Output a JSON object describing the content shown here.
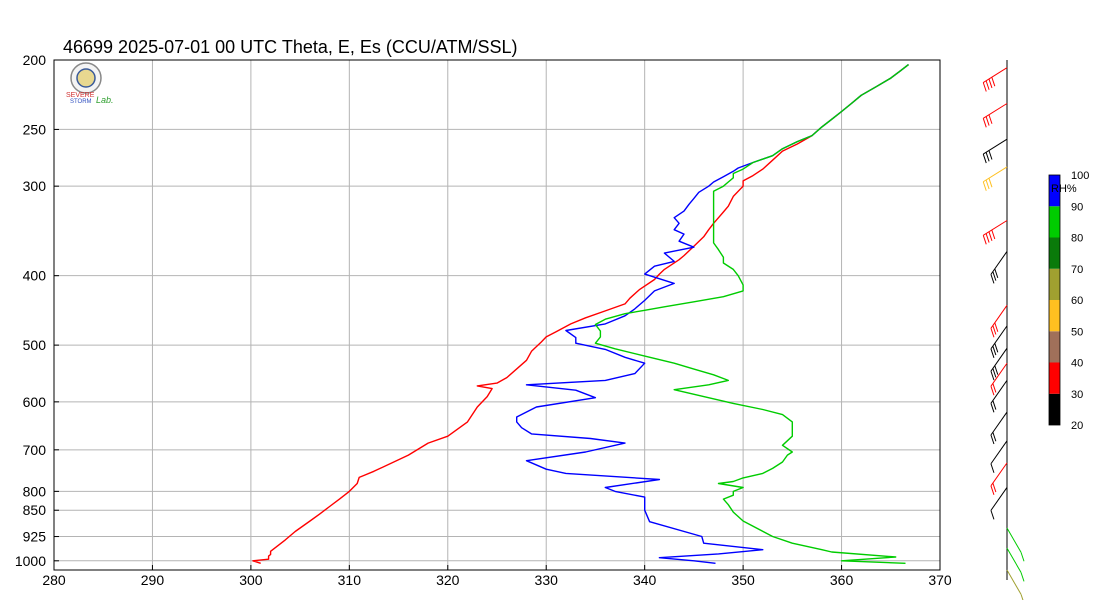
{
  "chart_data": {
    "type": "line",
    "title": "46699  2025-07-01 00 UTC  Theta, E, Es (CCU/ATM/SSL)",
    "xlabel": "",
    "ylabel": "",
    "xlim": [
      280,
      370
    ],
    "ylim_pressure_hPa": [
      1030,
      200
    ],
    "y_scale": "log-pressure",
    "grid": true,
    "x_ticks": [
      "280",
      "290",
      "300",
      "310",
      "320",
      "330",
      "340",
      "350",
      "360",
      "370"
    ],
    "y_ticks": [
      {
        "p": 200,
        "label": "200"
      },
      {
        "p": 250,
        "label": "250"
      },
      {
        "p": 300,
        "label": "300"
      },
      {
        "p": 400,
        "label": "400"
      },
      {
        "p": 500,
        "label": "500"
      },
      {
        "p": 600,
        "label": "600"
      },
      {
        "p": 700,
        "label": "700"
      },
      {
        "p": 800,
        "label": "800"
      },
      {
        "p": 850,
        "label": "850"
      },
      {
        "p": 925,
        "label": "925"
      },
      {
        "p": 1000,
        "label": "1000"
      }
    ],
    "series": [
      {
        "key": "theta",
        "color": "#ff0000",
        "points": [
          [
            301,
            1008
          ],
          [
            300.2,
            1000
          ],
          [
            301.8,
            995
          ],
          [
            301.8,
            985
          ],
          [
            302,
            980
          ],
          [
            302,
            970
          ],
          [
            303.5,
            935
          ],
          [
            304.5,
            910
          ],
          [
            306,
            880
          ],
          [
            307,
            860
          ],
          [
            308,
            840
          ],
          [
            309,
            820
          ],
          [
            310,
            800
          ],
          [
            310.8,
            780
          ],
          [
            311,
            765
          ],
          [
            311.5,
            760
          ],
          [
            312.5,
            750
          ],
          [
            316,
            712
          ],
          [
            318,
            685
          ],
          [
            320,
            670
          ],
          [
            322,
            640
          ],
          [
            323,
            610
          ],
          [
            324,
            590
          ],
          [
            324.5,
            575
          ],
          [
            323,
            570
          ],
          [
            325,
            565
          ],
          [
            326,
            555
          ],
          [
            328,
            525
          ],
          [
            328.5,
            510
          ],
          [
            329.5,
            495
          ],
          [
            330,
            487
          ],
          [
            331,
            479
          ],
          [
            332.5,
            467
          ],
          [
            334,
            458
          ],
          [
            336,
            448
          ],
          [
            338,
            438
          ],
          [
            338.5,
            430
          ],
          [
            339.5,
            418
          ],
          [
            341,
            405
          ],
          [
            341.5,
            398
          ],
          [
            342,
            392
          ],
          [
            343.5,
            380
          ],
          [
            344,
            375
          ],
          [
            345,
            364
          ],
          [
            346,
            353
          ],
          [
            346.5,
            345
          ],
          [
            347,
            338
          ],
          [
            347.5,
            332
          ],
          [
            348,
            326
          ],
          [
            348.5,
            320
          ],
          [
            349,
            310
          ],
          [
            350,
            300
          ],
          [
            350,
            295
          ],
          [
            351,
            290
          ],
          [
            352,
            284
          ],
          [
            353,
            276
          ],
          [
            354,
            268
          ],
          [
            355.5,
            262
          ],
          [
            357,
            255
          ],
          [
            358,
            248
          ],
          [
            359,
            242
          ],
          [
            360,
            236
          ],
          [
            361,
            230
          ],
          [
            362,
            224
          ],
          [
            363.5,
            218
          ],
          [
            365,
            212
          ],
          [
            366,
            207
          ],
          [
            366.8,
            203
          ]
        ]
      },
      {
        "key": "E",
        "color": "#0000ff",
        "points": [
          [
            347.2,
            1008
          ],
          [
            345,
            1000
          ],
          [
            341.5,
            990
          ],
          [
            347.5,
            978
          ],
          [
            352,
            965
          ],
          [
            346,
            945
          ],
          [
            345.8,
            925
          ],
          [
            340.5,
            882
          ],
          [
            340,
            850
          ],
          [
            340,
            815
          ],
          [
            337,
            800
          ],
          [
            336,
            790
          ],
          [
            341.5,
            770
          ],
          [
            332,
            755
          ],
          [
            330,
            745
          ],
          [
            328,
            725
          ],
          [
            334,
            705
          ],
          [
            338,
            685
          ],
          [
            334.5,
            675
          ],
          [
            328.5,
            665
          ],
          [
            327.5,
            652
          ],
          [
            327,
            640
          ],
          [
            327,
            630
          ],
          [
            329,
            610
          ],
          [
            335,
            592
          ],
          [
            333,
            578
          ],
          [
            328,
            568
          ],
          [
            336,
            560
          ],
          [
            339,
            548
          ],
          [
            340,
            530
          ],
          [
            338,
            520
          ],
          [
            336,
            507
          ],
          [
            333,
            497
          ],
          [
            333,
            488
          ],
          [
            332,
            477
          ],
          [
            336,
            467
          ],
          [
            338,
            455
          ],
          [
            339,
            445
          ],
          [
            340,
            433
          ],
          [
            341,
            420
          ],
          [
            343,
            410
          ],
          [
            340,
            398
          ],
          [
            341,
            388
          ],
          [
            343,
            382
          ],
          [
            342,
            372
          ],
          [
            345,
            365
          ],
          [
            343.5,
            358
          ],
          [
            344,
            350
          ],
          [
            343,
            345
          ],
          [
            343.5,
            338
          ],
          [
            343,
            332
          ],
          [
            344,
            325
          ],
          [
            344.5,
            318
          ],
          [
            345,
            312
          ],
          [
            345.5,
            306
          ],
          [
            346.5,
            300
          ],
          [
            347,
            296
          ],
          [
            348,
            291
          ],
          [
            349,
            286
          ],
          [
            349.5,
            283
          ],
          [
            351,
            278
          ],
          [
            353,
            272
          ],
          [
            354,
            266
          ],
          [
            355.5,
            260
          ],
          [
            357,
            255
          ],
          [
            358,
            248
          ],
          [
            359,
            242
          ],
          [
            360,
            236
          ],
          [
            361,
            230
          ],
          [
            362,
            224
          ],
          [
            363.5,
            218
          ],
          [
            365,
            212
          ],
          [
            366,
            207
          ],
          [
            366.8,
            203
          ]
        ]
      },
      {
        "key": "Es",
        "color": "#00cc00",
        "points": [
          [
            366.5,
            1008
          ],
          [
            360,
            1000
          ],
          [
            365.5,
            988
          ],
          [
            359,
            972
          ],
          [
            358,
            965
          ],
          [
            355,
            945
          ],
          [
            353,
            925
          ],
          [
            350,
            880
          ],
          [
            349,
            855
          ],
          [
            348.5,
            835
          ],
          [
            348,
            820
          ],
          [
            349,
            810
          ],
          [
            349,
            800
          ],
          [
            350,
            790
          ],
          [
            347.5,
            780
          ],
          [
            349,
            775
          ],
          [
            350,
            766
          ],
          [
            352,
            755
          ],
          [
            353,
            743
          ],
          [
            354,
            728
          ],
          [
            354.5,
            712
          ],
          [
            355,
            705
          ],
          [
            354,
            690
          ],
          [
            355,
            670
          ],
          [
            355,
            655
          ],
          [
            355,
            640
          ],
          [
            354,
            625
          ],
          [
            352,
            615
          ],
          [
            349,
            603
          ],
          [
            346,
            590
          ],
          [
            343,
            577
          ],
          [
            346.5,
            568
          ],
          [
            348.5,
            560
          ],
          [
            347,
            550
          ],
          [
            345,
            540
          ],
          [
            343,
            530
          ],
          [
            340,
            518
          ],
          [
            337,
            506
          ],
          [
            335,
            497
          ],
          [
            335.5,
            487
          ],
          [
            335.5,
            478
          ],
          [
            335,
            468
          ],
          [
            336,
            460
          ],
          [
            338,
            452
          ],
          [
            340,
            447
          ],
          [
            342,
            442
          ],
          [
            345,
            435
          ],
          [
            348,
            428
          ],
          [
            350,
            420
          ],
          [
            350,
            412
          ],
          [
            349.5,
            400
          ],
          [
            349,
            392
          ],
          [
            348,
            384
          ],
          [
            348,
            377
          ],
          [
            347.5,
            368
          ],
          [
            347,
            360
          ],
          [
            347,
            352
          ],
          [
            347,
            344
          ],
          [
            347,
            336
          ],
          [
            347,
            328
          ],
          [
            347,
            320
          ],
          [
            347,
            312
          ],
          [
            347,
            305
          ],
          [
            348,
            300
          ],
          [
            348.5,
            296
          ],
          [
            349,
            292
          ],
          [
            349,
            288
          ],
          [
            350,
            284
          ],
          [
            351,
            278
          ],
          [
            353,
            272
          ],
          [
            354,
            266
          ],
          [
            355.5,
            260
          ],
          [
            357,
            255
          ],
          [
            358,
            248
          ],
          [
            359,
            242
          ],
          [
            360,
            236
          ],
          [
            361,
            230
          ],
          [
            362,
            224
          ],
          [
            363.5,
            218
          ],
          [
            365,
            212
          ],
          [
            366,
            207
          ],
          [
            366.8,
            203
          ]
        ]
      }
    ],
    "rh_colorbar": {
      "label": "RH%",
      "ticks": [
        "20",
        "30",
        "40",
        "50",
        "60",
        "70",
        "80",
        "90",
        "100"
      ],
      "colors": [
        "#000000",
        "#ff0000",
        "#a0705a",
        "#ffc020",
        "#a0a030",
        "#0a7a0a",
        "#00cc00",
        "#0000ff"
      ]
    },
    "wind_barbs": [
      {
        "p": 205,
        "color": "#ff0000",
        "speed_kt": 35
      },
      {
        "p": 230,
        "color": "#ff0000",
        "speed_kt": 30
      },
      {
        "p": 258,
        "color": "#000000",
        "speed_kt": 30
      },
      {
        "p": 282,
        "color": "#ffc020",
        "speed_kt": 30
      },
      {
        "p": 335,
        "color": "#ff0000",
        "speed_kt": 35
      },
      {
        "p": 370,
        "color": "#000000",
        "speed_kt": 25
      },
      {
        "p": 440,
        "color": "#ff0000",
        "speed_kt": 25
      },
      {
        "p": 470,
        "color": "#000000",
        "speed_kt": 30
      },
      {
        "p": 505,
        "color": "#000000",
        "speed_kt": 25
      },
      {
        "p": 530,
        "color": "#ff0000",
        "speed_kt": 20
      },
      {
        "p": 560,
        "color": "#000000",
        "speed_kt": 15
      },
      {
        "p": 620,
        "color": "#000000",
        "speed_kt": 20
      },
      {
        "p": 680,
        "color": "#000000",
        "speed_kt": 10
      },
      {
        "p": 730,
        "color": "#ff0000",
        "speed_kt": 15
      },
      {
        "p": 790,
        "color": "#000000",
        "speed_kt": 5
      },
      {
        "p": 900,
        "color": "#00cc00",
        "speed_kt": 10
      },
      {
        "p": 960,
        "color": "#00cc00",
        "speed_kt": 10
      },
      {
        "p": 1030,
        "color": "#a0a030",
        "speed_kt": 10
      }
    ]
  },
  "logo": {
    "text_top": "SEVERE",
    "text_bottom": "STORM",
    "text_lab": "Lab."
  }
}
